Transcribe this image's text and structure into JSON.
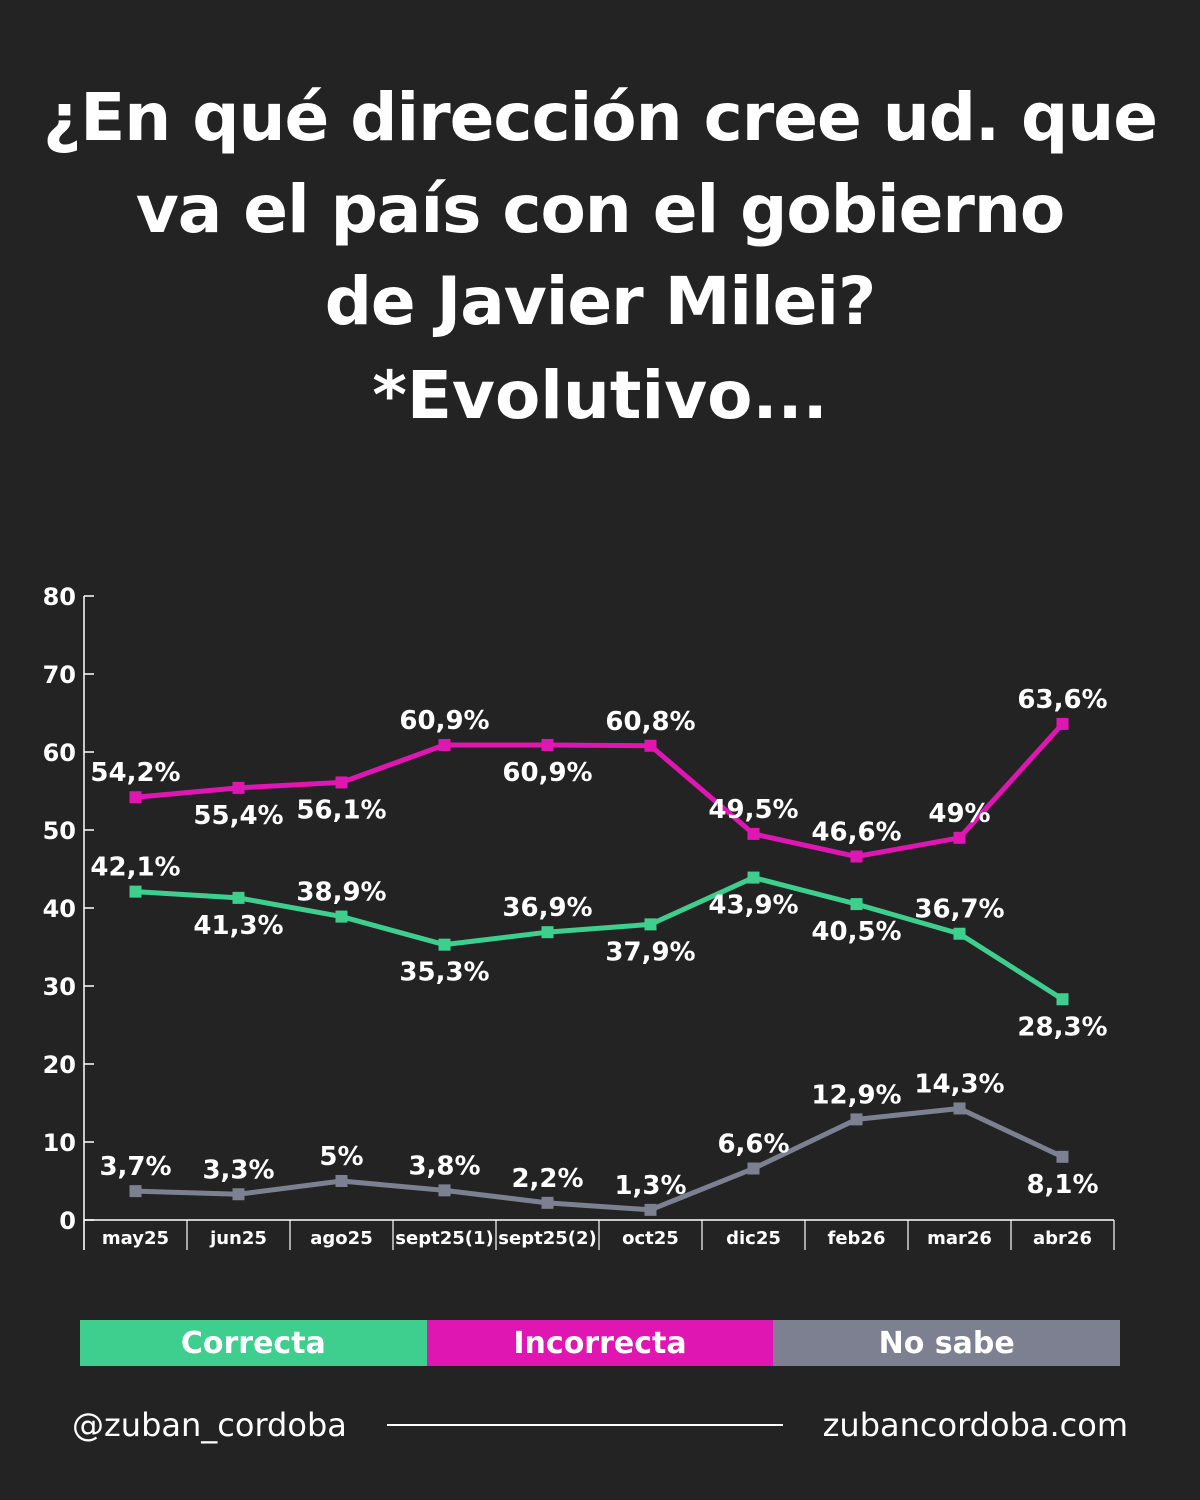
{
  "title_lines": [
    "¿En qué dirección cree ud. que",
    "va el país con el gobierno",
    "de Javier Milei?"
  ],
  "subtitle": "*Evolutivo...",
  "chart_data": {
    "type": "line",
    "title": "¿En qué dirección cree ud. que va el país con el gobierno de Javier Milei?",
    "categories": [
      "may25",
      "jun25",
      "ago25",
      "sept25(1)",
      "sept25(2)",
      "oct25",
      "dic25",
      "feb26",
      "mar26",
      "abr26"
    ],
    "ylim": [
      0,
      80
    ],
    "yticks": [
      0,
      10,
      20,
      30,
      40,
      50,
      60,
      70,
      80
    ],
    "series": [
      {
        "name": "Correcta",
        "color": "#3ecf8e",
        "values": [
          42.1,
          41.3,
          38.9,
          35.3,
          36.9,
          37.9,
          43.9,
          40.5,
          36.7,
          28.3
        ],
        "labels": [
          "42,1%",
          "41,3%",
          "38,9%",
          "35,3%",
          "36,9%",
          "37,9%",
          "43,9%",
          "40,5%",
          "36,7%",
          "28,3%"
        ]
      },
      {
        "name": "Incorrecta",
        "color": "#e016b3",
        "values": [
          54.2,
          55.4,
          56.1,
          60.9,
          60.9,
          60.8,
          49.5,
          46.6,
          49,
          63.6
        ],
        "labels": [
          "54,2%",
          "55,4%",
          "56,1%",
          "60,9%",
          "60,9%",
          "60,8%",
          "49,5%",
          "46,6%",
          "49%",
          "63,6%"
        ]
      },
      {
        "name": "No sabe",
        "color": "#7d8091",
        "values": [
          3.7,
          3.3,
          5,
          3.8,
          2.2,
          1.3,
          6.6,
          12.9,
          14.3,
          8.1
        ],
        "labels": [
          "3,7%",
          "3,3%",
          "5%",
          "3,8%",
          "2,2%",
          "1,3%",
          "6,6%",
          "12,9%",
          "14,3%",
          "8,1%"
        ]
      }
    ]
  },
  "legend": [
    {
      "label": "Correcta",
      "color": "#3ecf8e"
    },
    {
      "label": "Incorrecta",
      "color": "#e016b3"
    },
    {
      "label": "No sabe",
      "color": "#7d8091"
    }
  ],
  "footer": {
    "handle": "@zuban_cordoba",
    "website": "zubancordoba.com"
  }
}
